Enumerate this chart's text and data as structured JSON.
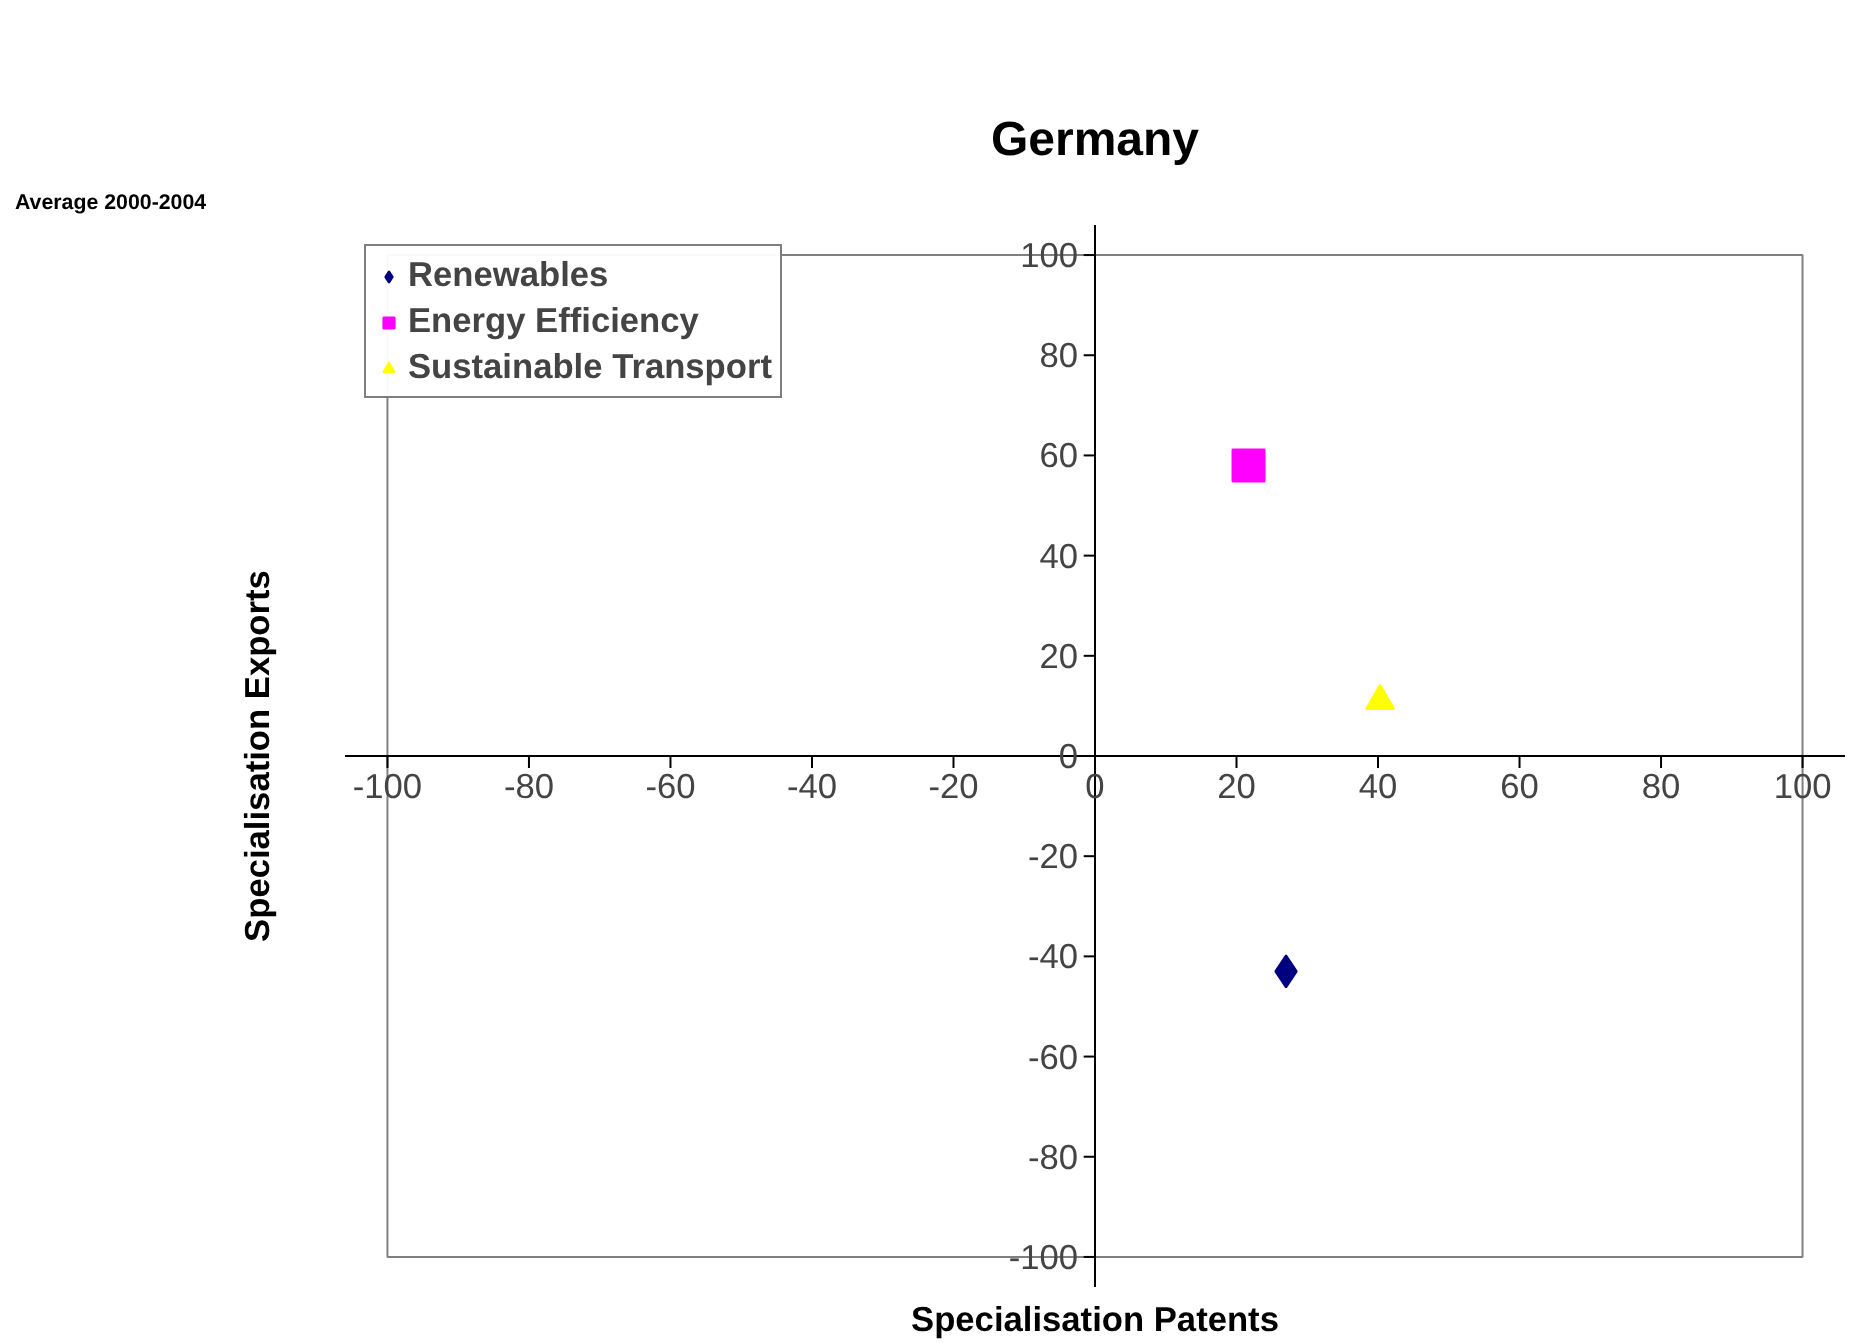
{
  "chart_data": {
    "type": "scatter",
    "title": "Germany",
    "xlabel": "Specialisation Patents",
    "ylabel": "Specialisation Exports",
    "annotations": [
      "Average 2000-2004"
    ],
    "xlim": [
      -100,
      100
    ],
    "ylim": [
      -100,
      100
    ],
    "xticks": [
      -100,
      -80,
      -60,
      -40,
      -20,
      0,
      20,
      40,
      60,
      80,
      100
    ],
    "yticks": [
      -100,
      -80,
      -60,
      -40,
      -20,
      0,
      20,
      40,
      60,
      80,
      100
    ],
    "grid": false,
    "legend": "top left",
    "series": [
      {
        "name": "Renewables",
        "color": "#000080",
        "marker": "diamond",
        "x": [
          27
        ],
        "values": [
          -43
        ]
      },
      {
        "name": "Energy Efficiency",
        "color": "#ff00ff",
        "marker": "square",
        "x": [
          21.7
        ],
        "values": [
          58
        ]
      },
      {
        "name": "Sustainable Transport",
        "color": "#ffff00",
        "marker": "triangle",
        "x": [
          40.3
        ],
        "values": [
          11
        ]
      }
    ]
  }
}
